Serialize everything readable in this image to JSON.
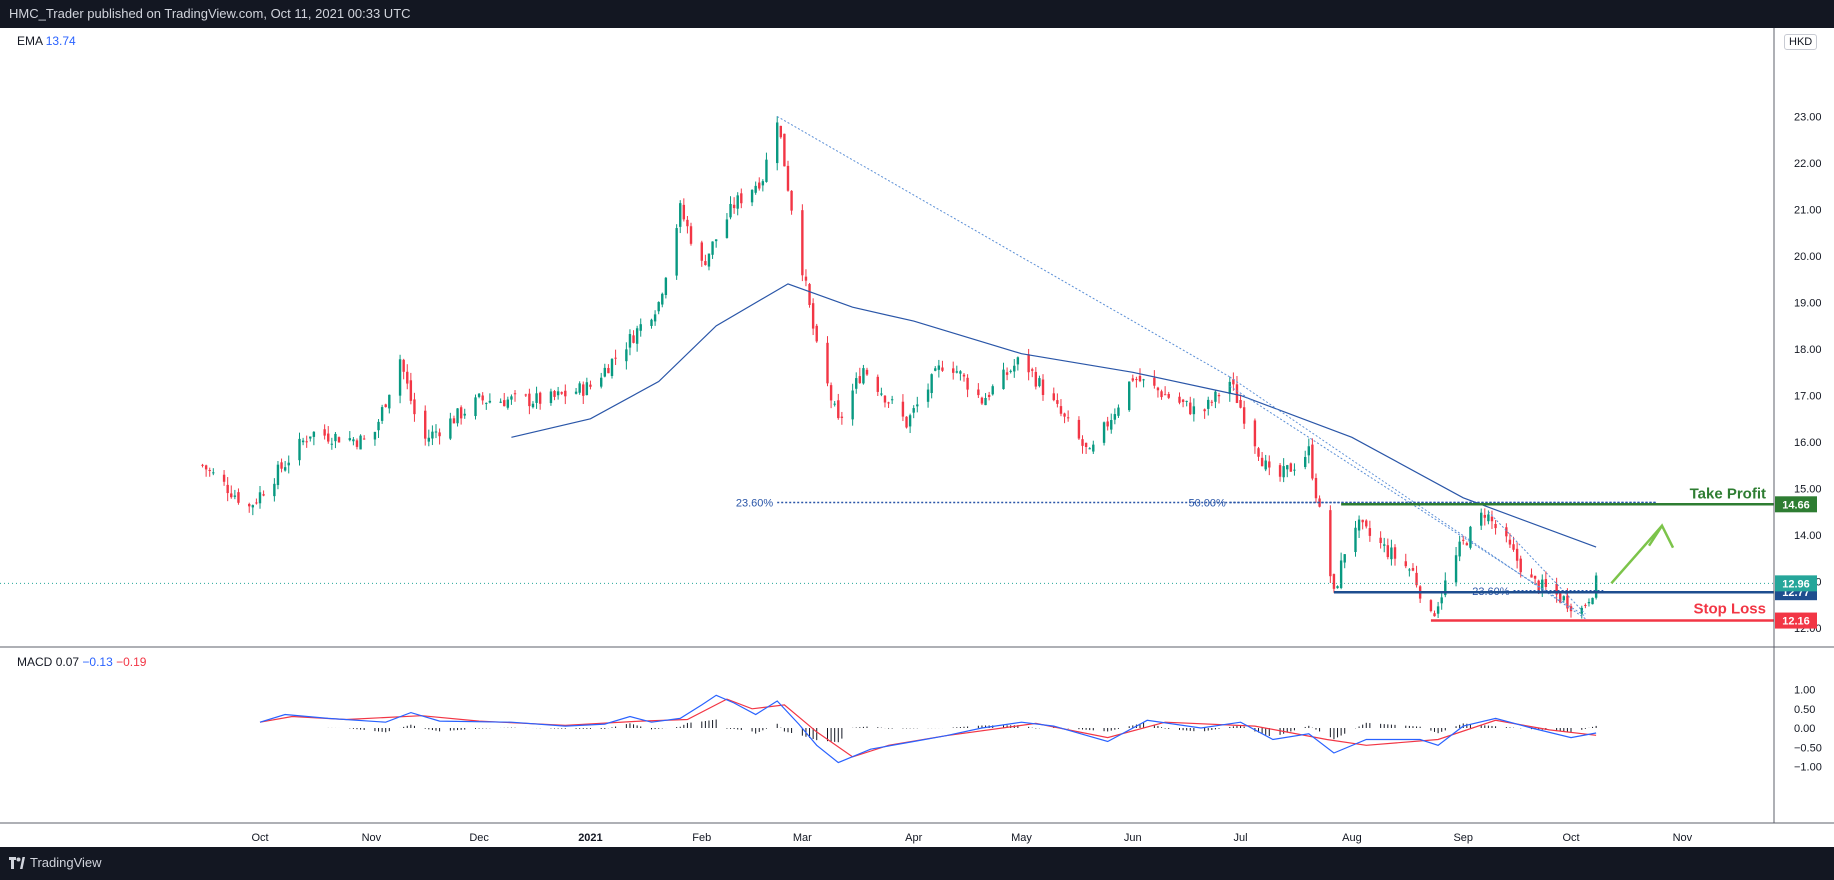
{
  "header": {
    "publish_line": "HMC_Trader published on TradingView.com, Oct 11, 2021 00:33 UTC"
  },
  "footer": {
    "brand": "TradingView"
  },
  "legend": {
    "ema_label": "EMA",
    "ema_value": "13.74",
    "macd_label": "MACD",
    "macd_v1": "0.07",
    "macd_v2": "−0.13",
    "macd_v3": "−0.19"
  },
  "currency": "HKD",
  "chart_data": [
    {
      "type": "candlestick",
      "ylim": [
        11.5,
        23.6
      ],
      "yticks": [
        "12.00",
        "13.00",
        "14.00",
        "15.00",
        "16.00",
        "17.00",
        "18.00",
        "19.00",
        "20.00",
        "21.00",
        "22.00",
        "23.00"
      ],
      "xticks": [
        "Oct",
        "Nov",
        "Dec",
        "2021",
        "Feb",
        "Mar",
        "Apr",
        "May",
        "Jun",
        "Jul",
        "Aug",
        "Sep",
        "Oct",
        "Nov"
      ],
      "close_path": [
        {
          "d": "2020-09-15",
          "v": 15.5
        },
        {
          "d": "2020-09-28",
          "v": 14.6
        },
        {
          "d": "2020-10-15",
          "v": 16.2
        },
        {
          "d": "2020-11-01",
          "v": 16.0
        },
        {
          "d": "2020-11-09",
          "v": 17.8
        },
        {
          "d": "2020-11-15",
          "v": 16.0
        },
        {
          "d": "2020-12-01",
          "v": 16.9
        },
        {
          "d": "2020-12-20",
          "v": 16.9
        },
        {
          "d": "2021-01-01",
          "v": 17.2
        },
        {
          "d": "2021-01-12",
          "v": 18.2
        },
        {
          "d": "2021-01-20",
          "v": 19.0
        },
        {
          "d": "2021-01-26",
          "v": 21.0
        },
        {
          "d": "2021-02-01",
          "v": 19.8
        },
        {
          "d": "2021-02-10",
          "v": 21.1
        },
        {
          "d": "2021-02-18",
          "v": 21.7
        },
        {
          "d": "2021-02-22",
          "v": 23.0
        },
        {
          "d": "2021-02-25",
          "v": 21.5
        },
        {
          "d": "2021-03-05",
          "v": 18.0
        },
        {
          "d": "2021-03-11",
          "v": 16.4
        },
        {
          "d": "2021-03-18",
          "v": 17.6
        },
        {
          "d": "2021-03-30",
          "v": 16.4
        },
        {
          "d": "2021-04-10",
          "v": 17.8
        },
        {
          "d": "2021-04-20",
          "v": 16.9
        },
        {
          "d": "2021-05-01",
          "v": 17.8
        },
        {
          "d": "2021-05-20",
          "v": 15.7
        },
        {
          "d": "2021-06-01",
          "v": 17.4
        },
        {
          "d": "2021-06-20",
          "v": 16.6
        },
        {
          "d": "2021-06-28",
          "v": 17.3
        },
        {
          "d": "2021-07-10",
          "v": 15.1
        },
        {
          "d": "2021-07-20",
          "v": 15.8
        },
        {
          "d": "2021-07-27",
          "v": 12.7
        },
        {
          "d": "2021-08-01",
          "v": 14.3
        },
        {
          "d": "2021-08-18",
          "v": 13.2
        },
        {
          "d": "2021-08-23",
          "v": 12.2
        },
        {
          "d": "2021-08-31",
          "v": 13.7
        },
        {
          "d": "2021-09-07",
          "v": 14.5
        },
        {
          "d": "2021-09-20",
          "v": 13.0
        },
        {
          "d": "2021-10-04",
          "v": 12.4
        },
        {
          "d": "2021-10-08",
          "v": 12.96
        }
      ],
      "ema": [
        {
          "d": "2020-12-10",
          "v": 16.1
        },
        {
          "d": "2021-01-01",
          "v": 16.5
        },
        {
          "d": "2021-01-20",
          "v": 17.3
        },
        {
          "d": "2021-02-05",
          "v": 18.5
        },
        {
          "d": "2021-02-25",
          "v": 19.4
        },
        {
          "d": "2021-03-15",
          "v": 18.9
        },
        {
          "d": "2021-04-01",
          "v": 18.6
        },
        {
          "d": "2021-05-01",
          "v": 17.9
        },
        {
          "d": "2021-06-01",
          "v": 17.5
        },
        {
          "d": "2021-07-01",
          "v": 17.0
        },
        {
          "d": "2021-08-01",
          "v": 16.1
        },
        {
          "d": "2021-09-01",
          "v": 14.8
        },
        {
          "d": "2021-10-08",
          "v": 13.74
        }
      ],
      "trendlines": [
        [
          {
            "d": "2021-02-22",
            "v": 23.0
          },
          {
            "d": "2021-06-28",
            "v": 17.4
          }
        ],
        [
          {
            "d": "2021-06-28",
            "v": 17.4
          },
          {
            "d": "2021-10-05",
            "v": 12.2
          }
        ],
        [
          {
            "d": "2021-06-28",
            "v": 17.2
          },
          {
            "d": "2021-10-05",
            "v": 12.25
          }
        ],
        [
          {
            "d": "2021-09-08",
            "v": 14.5
          },
          {
            "d": "2021-10-05",
            "v": 12.3
          }
        ]
      ],
      "fib_levels": [
        {
          "label": "23.60%",
          "value": 14.7,
          "from": "2021-02-22",
          "to": "2021-10-25"
        },
        {
          "label": "50.00%",
          "value": 14.7,
          "from": "2021-06-28",
          "to": "2021-10-25"
        },
        {
          "label": "23.60%",
          "value": 12.8,
          "from": "2021-09-15",
          "to": "2021-10-10"
        }
      ],
      "levels": [
        {
          "name": "Take Profit",
          "value": 14.66,
          "label": "14.66",
          "color": "#2e7d32",
          "from": "2021-07-29"
        },
        {
          "name": "",
          "value": 12.77,
          "label": "12.77",
          "color": "#1e4e8f",
          "from": "2021-07-27"
        },
        {
          "name": "Stop Loss",
          "value": 12.16,
          "label": "12.16",
          "color": "#f23645",
          "from": "2021-08-23"
        }
      ],
      "last_price": {
        "value": 12.96,
        "label": "12.96",
        "color": "#26a69a"
      },
      "arrow": [
        {
          "d": "2021-10-10",
          "v": 12.96
        },
        {
          "d": "2021-10-23",
          "v": 14.2
        }
      ]
    },
    {
      "type": "macd",
      "ylim": [
        -1.1,
        1.05
      ],
      "yticks": [
        "1.00",
        "0.50",
        "0.00",
        "−0.50",
        "−1.00"
      ],
      "macd": [
        {
          "d": "2020-10-01",
          "v": 0.15
        },
        {
          "d": "2020-10-08",
          "v": 0.35
        },
        {
          "d": "2020-10-20",
          "v": 0.25
        },
        {
          "d": "2020-11-05",
          "v": 0.15
        },
        {
          "d": "2020-11-12",
          "v": 0.4
        },
        {
          "d": "2020-11-20",
          "v": 0.18
        },
        {
          "d": "2020-12-10",
          "v": 0.15
        },
        {
          "d": "2020-12-25",
          "v": 0.05
        },
        {
          "d": "2021-01-05",
          "v": 0.1
        },
        {
          "d": "2021-01-12",
          "v": 0.3
        },
        {
          "d": "2021-01-18",
          "v": 0.15
        },
        {
          "d": "2021-01-26",
          "v": 0.25
        },
        {
          "d": "2021-02-01",
          "v": 0.6
        },
        {
          "d": "2021-02-05",
          "v": 0.85
        },
        {
          "d": "2021-02-10",
          "v": 0.65
        },
        {
          "d": "2021-02-16",
          "v": 0.35
        },
        {
          "d": "2021-02-22",
          "v": 0.7
        },
        {
          "d": "2021-02-28",
          "v": 0.1
        },
        {
          "d": "2021-03-05",
          "v": -0.45
        },
        {
          "d": "2021-03-11",
          "v": -0.9
        },
        {
          "d": "2021-03-20",
          "v": -0.55
        },
        {
          "d": "2021-04-01",
          "v": -0.35
        },
        {
          "d": "2021-04-10",
          "v": -0.2
        },
        {
          "d": "2021-04-20",
          "v": 0.0
        },
        {
          "d": "2021-05-01",
          "v": 0.15
        },
        {
          "d": "2021-05-10",
          "v": 0.05
        },
        {
          "d": "2021-05-25",
          "v": -0.35
        },
        {
          "d": "2021-06-05",
          "v": 0.2
        },
        {
          "d": "2021-06-20",
          "v": 0.0
        },
        {
          "d": "2021-07-01",
          "v": 0.15
        },
        {
          "d": "2021-07-10",
          "v": -0.3
        },
        {
          "d": "2021-07-20",
          "v": -0.15
        },
        {
          "d": "2021-07-27",
          "v": -0.65
        },
        {
          "d": "2021-08-05",
          "v": -0.3
        },
        {
          "d": "2021-08-20",
          "v": -0.3
        },
        {
          "d": "2021-08-25",
          "v": -0.45
        },
        {
          "d": "2021-09-01",
          "v": 0.05
        },
        {
          "d": "2021-09-10",
          "v": 0.25
        },
        {
          "d": "2021-09-20",
          "v": 0.0
        },
        {
          "d": "2021-10-01",
          "v": -0.25
        },
        {
          "d": "2021-10-08",
          "v": -0.13
        }
      ],
      "signal": [
        {
          "d": "2020-10-01",
          "v": 0.15
        },
        {
          "d": "2020-10-10",
          "v": 0.3
        },
        {
          "d": "2020-10-25",
          "v": 0.22
        },
        {
          "d": "2020-11-15",
          "v": 0.32
        },
        {
          "d": "2020-12-01",
          "v": 0.18
        },
        {
          "d": "2020-12-25",
          "v": 0.07
        },
        {
          "d": "2021-01-15",
          "v": 0.18
        },
        {
          "d": "2021-01-28",
          "v": 0.22
        },
        {
          "d": "2021-02-08",
          "v": 0.75
        },
        {
          "d": "2021-02-15",
          "v": 0.5
        },
        {
          "d": "2021-02-24",
          "v": 0.6
        },
        {
          "d": "2021-03-05",
          "v": -0.1
        },
        {
          "d": "2021-03-15",
          "v": -0.75
        },
        {
          "d": "2021-03-25",
          "v": -0.45
        },
        {
          "d": "2021-04-10",
          "v": -0.2
        },
        {
          "d": "2021-05-05",
          "v": 0.12
        },
        {
          "d": "2021-05-25",
          "v": -0.25
        },
        {
          "d": "2021-06-10",
          "v": 0.15
        },
        {
          "d": "2021-07-05",
          "v": 0.05
        },
        {
          "d": "2021-07-25",
          "v": -0.3
        },
        {
          "d": "2021-08-05",
          "v": -0.45
        },
        {
          "d": "2021-08-25",
          "v": -0.3
        },
        {
          "d": "2021-09-10",
          "v": 0.2
        },
        {
          "d": "2021-09-25",
          "v": -0.05
        },
        {
          "d": "2021-10-08",
          "v": -0.19
        }
      ]
    }
  ]
}
